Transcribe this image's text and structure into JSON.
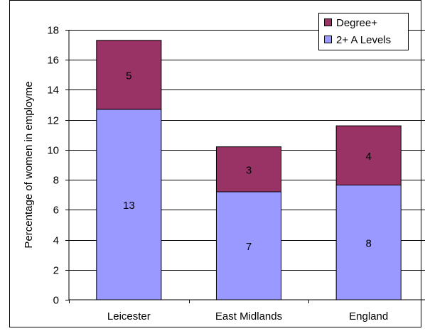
{
  "chart_data": {
    "type": "bar",
    "stacked": true,
    "title": "",
    "xlabel": "",
    "ylabel": "Percentage of women in employme",
    "ylim": [
      0,
      18
    ],
    "yticks": [
      0,
      2,
      4,
      6,
      8,
      10,
      12,
      14,
      16,
      18
    ],
    "grid": true,
    "legend_position": "top-right",
    "categories": [
      "Leicester",
      "East Midlands",
      "England"
    ],
    "series": [
      {
        "name": "2+ A Levels",
        "color": "#9999FF",
        "values": [
          12.7,
          7.2,
          7.65
        ],
        "data_labels": [
          "13",
          "7",
          "8"
        ]
      },
      {
        "name": "Degree+",
        "color": "#993366",
        "values": [
          4.6,
          3.0,
          3.95
        ],
        "data_labels": [
          "5",
          "3",
          "4"
        ]
      }
    ],
    "legend_order": [
      "Degree+",
      "2+ A Levels"
    ]
  }
}
